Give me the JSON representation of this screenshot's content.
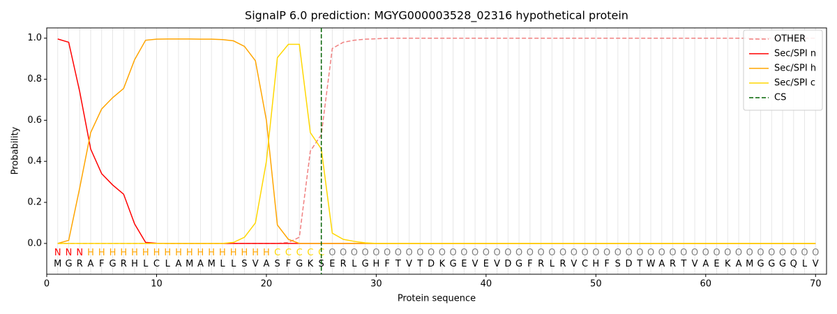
{
  "chart_data": {
    "type": "line",
    "title": "SignalP 6.0 prediction: MGYG000003528_02316 hypothetical protein",
    "x_label": "Protein sequence",
    "y_label": "Probability",
    "xlim": [
      0,
      71
    ],
    "ylim": [
      -0.15,
      1.05
    ],
    "xticks": [
      0,
      10,
      20,
      30,
      40,
      50,
      60,
      70
    ],
    "yticks": [
      {
        "value": 0,
        "label": "0.0"
      },
      0.2,
      0.4,
      0.6,
      0.8,
      {
        "value": 1,
        "label": "1.0"
      }
    ],
    "legend": "upper right",
    "x": [
      1,
      2,
      3,
      4,
      5,
      6,
      7,
      8,
      9,
      10,
      11,
      12,
      13,
      14,
      15,
      16,
      17,
      18,
      19,
      20,
      21,
      22,
      23,
      24,
      25,
      26,
      27,
      28,
      29,
      30,
      31,
      32,
      33,
      34,
      35,
      36,
      37,
      38,
      39,
      40,
      41,
      42,
      43,
      44,
      45,
      46,
      47,
      48,
      49,
      50,
      51,
      52,
      53,
      54,
      55,
      56,
      57,
      58,
      59,
      60,
      61,
      62,
      63,
      64,
      65,
      66,
      67,
      68,
      69,
      70
    ],
    "sequence": [
      "M",
      "G",
      "R",
      "A",
      "F",
      "G",
      "R",
      "H",
      "L",
      "C",
      "L",
      "A",
      "M",
      "A",
      "M",
      "L",
      "L",
      "S",
      "V",
      "A",
      "S",
      "F",
      "G",
      "K",
      "S",
      "E",
      "R",
      "L",
      "G",
      "H",
      "F",
      "T",
      "V",
      "T",
      "D",
      "K",
      "G",
      "E",
      "V",
      "E",
      "V",
      "D",
      "G",
      "F",
      "R",
      "L",
      "R",
      "V",
      "C",
      "H",
      "F",
      "S",
      "D",
      "T",
      "W",
      "A",
      "R",
      "T",
      "V",
      "A",
      "E",
      "K",
      "A",
      "M",
      "G",
      "G",
      "G",
      "Q",
      "L",
      "V"
    ],
    "region_labels": [
      "N",
      "N",
      "N",
      "H",
      "H",
      "H",
      "H",
      "H",
      "H",
      "H",
      "H",
      "H",
      "H",
      "H",
      "H",
      "H",
      "H",
      "H",
      "H",
      "H",
      "C",
      "C",
      "C",
      "C",
      "C",
      "O",
      "O",
      "O",
      "O",
      "O",
      "O",
      "O",
      "O",
      "O",
      "O",
      "O",
      "O",
      "O",
      "O",
      "O",
      "O",
      "O",
      "O",
      "O",
      "O",
      "O",
      "O",
      "O",
      "O",
      "O",
      "O",
      "O",
      "O",
      "O",
      "O",
      "O",
      "O",
      "O",
      "O",
      "O",
      "O",
      "O",
      "O",
      "O",
      "O",
      "O",
      "O",
      "O",
      "O",
      "O"
    ],
    "region_colors": {
      "N": "#ff0000",
      "H": "#ffa500",
      "C": "#ffd700",
      "O": "#808080"
    },
    "series": [
      {
        "name": "OTHER",
        "color": "#f08080",
        "dashed": true,
        "values": [
          0,
          0,
          0,
          0,
          0,
          0,
          0,
          0,
          0,
          0,
          0,
          0,
          0,
          0,
          0,
          0,
          0,
          0,
          0,
          0,
          0,
          0.005,
          0.03,
          0.45,
          0.53,
          0.95,
          0.98,
          0.99,
          0.995,
          0.997,
          1,
          1,
          1,
          1,
          1,
          1,
          1,
          1,
          1,
          1,
          1,
          1,
          1,
          1,
          1,
          1,
          1,
          1,
          1,
          1,
          1,
          1,
          1,
          1,
          1,
          1,
          1,
          1,
          1,
          1,
          1,
          1,
          1,
          1,
          1,
          1,
          1,
          1,
          1,
          1
        ]
      },
      {
        "name": "Sec/SPI n",
        "color": "#ff0000",
        "values": [
          0.996,
          0.98,
          0.74,
          0.46,
          0.34,
          0.285,
          0.24,
          0.095,
          0.005,
          0.001,
          0,
          0,
          0,
          0,
          0,
          0,
          0,
          0,
          0,
          0,
          0,
          0,
          0,
          0,
          0,
          0,
          0,
          0,
          0,
          0,
          0,
          0,
          0,
          0,
          0,
          0,
          0,
          0,
          0,
          0,
          0,
          0,
          0,
          0,
          0,
          0,
          0,
          0,
          0,
          0,
          0,
          0,
          0,
          0,
          0,
          0,
          0,
          0,
          0,
          0,
          0,
          0,
          0,
          0,
          0,
          0,
          0,
          0,
          0,
          0
        ]
      },
      {
        "name": "Sec/SPI h",
        "color": "#ffa500",
        "values": [
          0,
          0.015,
          0.27,
          0.54,
          0.655,
          0.71,
          0.755,
          0.895,
          0.99,
          0.995,
          0.996,
          0.996,
          0.996,
          0.995,
          0.995,
          0.993,
          0.987,
          0.96,
          0.89,
          0.6,
          0.09,
          0.02,
          0,
          0,
          0,
          0,
          0,
          0,
          0,
          0,
          0,
          0,
          0,
          0,
          0,
          0,
          0,
          0,
          0,
          0,
          0,
          0,
          0,
          0,
          0,
          0,
          0,
          0,
          0,
          0,
          0,
          0,
          0,
          0,
          0,
          0,
          0,
          0,
          0,
          0,
          0,
          0,
          0,
          0,
          0,
          0,
          0,
          0,
          0,
          0
        ]
      },
      {
        "name": "Sec/SPI c",
        "color": "#ffd700",
        "values": [
          0,
          0,
          0,
          0,
          0,
          0,
          0,
          0,
          0,
          0,
          0,
          0,
          0,
          0,
          0,
          0,
          0.005,
          0.03,
          0.1,
          0.4,
          0.905,
          0.97,
          0.97,
          0.54,
          0.46,
          0.05,
          0.02,
          0.01,
          0.003,
          0,
          0,
          0,
          0,
          0,
          0,
          0,
          0,
          0,
          0,
          0,
          0,
          0,
          0,
          0,
          0,
          0,
          0,
          0,
          0,
          0,
          0,
          0,
          0,
          0,
          0,
          0,
          0,
          0,
          0,
          0,
          0,
          0,
          0,
          0,
          0,
          0,
          0,
          0,
          0,
          0
        ]
      }
    ],
    "cs": {
      "name": "CS",
      "x": 25,
      "color": "#006400"
    }
  }
}
